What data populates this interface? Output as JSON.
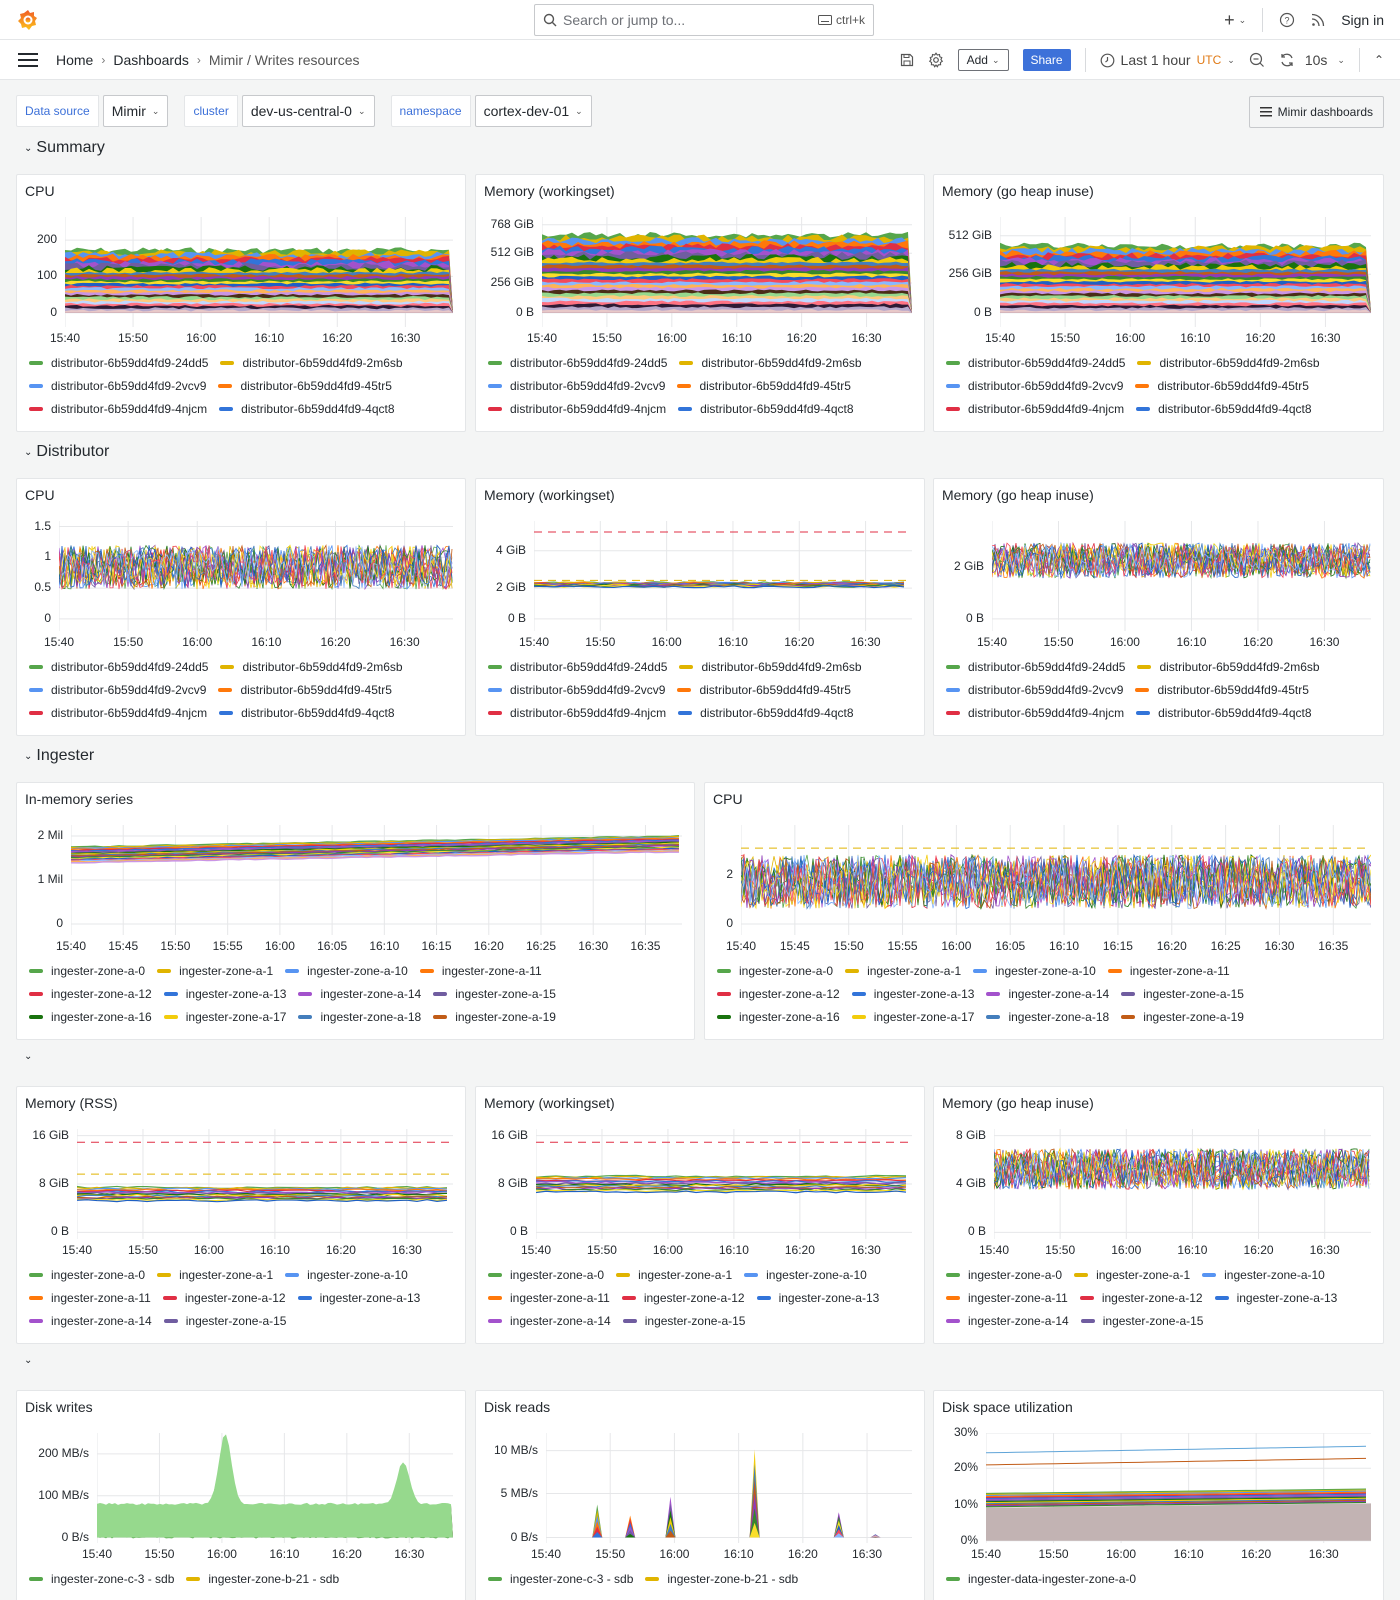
{
  "topbar": {
    "search_placeholder": "Search or jump to...",
    "search_shortcut": "ctrl+k",
    "plus_label": "+",
    "sign_in": "Sign in"
  },
  "navbar": {
    "breadcrumbs": [
      "Home",
      "Dashboards",
      "Mimir / Writes resources"
    ],
    "add_label": "Add",
    "share_label": "Share",
    "time_range": "Last 1 hour",
    "timezone": "UTC",
    "refresh_interval": "10s"
  },
  "variables": [
    {
      "label": "Data source",
      "value": "Mimir"
    },
    {
      "label": "cluster",
      "value": "dev-us-central-0"
    },
    {
      "label": "namespace",
      "value": "cortex-dev-01"
    }
  ],
  "mimir_dashboards_label": "Mimir dashboards",
  "rows": [
    {
      "title": "Summary"
    },
    {
      "title": "Distributor"
    },
    {
      "title": "Ingester"
    },
    {
      "title": ""
    },
    {
      "title": ""
    }
  ],
  "legends": {
    "distributor": [
      {
        "name": "distributor-6b59dd4fd9-24dd5",
        "color": "#56a64b"
      },
      {
        "name": "distributor-6b59dd4fd9-2m6sb",
        "color": "#e0b400"
      },
      {
        "name": "distributor-6b59dd4fd9-2vcv9",
        "color": "#5794f2"
      },
      {
        "name": "distributor-6b59dd4fd9-45tr5",
        "color": "#ff780a"
      },
      {
        "name": "distributor-6b59dd4fd9-4njcm",
        "color": "#e02f44"
      },
      {
        "name": "distributor-6b59dd4fd9-4qct8",
        "color": "#3274d9"
      }
    ],
    "ingester_12": [
      {
        "name": "ingester-zone-a-0",
        "color": "#56a64b"
      },
      {
        "name": "ingester-zone-a-1",
        "color": "#e0b400"
      },
      {
        "name": "ingester-zone-a-10",
        "color": "#5794f2"
      },
      {
        "name": "ingester-zone-a-11",
        "color": "#ff780a"
      },
      {
        "name": "ingester-zone-a-12",
        "color": "#e02f44"
      },
      {
        "name": "ingester-zone-a-13",
        "color": "#3274d9"
      },
      {
        "name": "ingester-zone-a-14",
        "color": "#a352cc"
      },
      {
        "name": "ingester-zone-a-15",
        "color": "#705da0"
      },
      {
        "name": "ingester-zone-a-16",
        "color": "#19730e"
      },
      {
        "name": "ingester-zone-a-17",
        "color": "#f2cc0c"
      },
      {
        "name": "ingester-zone-a-18",
        "color": "#447ebc"
      },
      {
        "name": "ingester-zone-a-19",
        "color": "#c15c17"
      }
    ],
    "disk": [
      {
        "name": "ingester-zone-c-3 - sdb",
        "color": "#56a64b"
      },
      {
        "name": "ingester-zone-b-21 - sdb",
        "color": "#e0b400"
      }
    ],
    "disk_space": [
      {
        "name": "ingester-data-ingester-zone-a-0",
        "color": "#56a64b"
      }
    ]
  },
  "panels": {
    "summary_cpu": {
      "title": "CPU",
      "yticks": [
        "200",
        "100",
        "0"
      ],
      "xticks": [
        "15:40",
        "15:50",
        "16:00",
        "16:10",
        "16:20",
        "16:30"
      ]
    },
    "summary_mem_ws": {
      "title": "Memory (workingset)",
      "yticks": [
        "768 GiB",
        "512 GiB",
        "256 GiB",
        "0 B"
      ],
      "xticks": [
        "15:40",
        "15:50",
        "16:00",
        "16:10",
        "16:20",
        "16:30"
      ]
    },
    "summary_mem_heap": {
      "title": "Memory (go heap inuse)",
      "yticks": [
        "512 GiB",
        "256 GiB",
        "0 B"
      ],
      "xticks": [
        "15:40",
        "15:50",
        "16:00",
        "16:10",
        "16:20",
        "16:30"
      ]
    },
    "dist_cpu": {
      "title": "CPU",
      "yticks": [
        "1.5",
        "1",
        "0.5",
        "0"
      ],
      "xticks": [
        "15:40",
        "15:50",
        "16:00",
        "16:10",
        "16:20",
        "16:30"
      ]
    },
    "dist_mem_ws": {
      "title": "Memory (workingset)",
      "yticks": [
        "4 GiB",
        "2 GiB",
        "0 B"
      ],
      "xticks": [
        "15:40",
        "15:50",
        "16:00",
        "16:10",
        "16:20",
        "16:30"
      ]
    },
    "dist_mem_heap": {
      "title": "Memory (go heap inuse)",
      "yticks": [
        "2 GiB",
        "0 B"
      ],
      "xticks": [
        "15:40",
        "15:50",
        "16:00",
        "16:10",
        "16:20",
        "16:30"
      ]
    },
    "ing_series": {
      "title": "In-memory series",
      "yticks": [
        "2 Mil",
        "1 Mil",
        "0"
      ],
      "xticks": [
        "15:40",
        "15:45",
        "15:50",
        "15:55",
        "16:00",
        "16:05",
        "16:10",
        "16:15",
        "16:20",
        "16:25",
        "16:30",
        "16:35"
      ]
    },
    "ing_cpu": {
      "title": "CPU",
      "yticks": [
        "2",
        "0"
      ],
      "xticks": [
        "15:40",
        "15:45",
        "15:50",
        "15:55",
        "16:00",
        "16:05",
        "16:10",
        "16:15",
        "16:20",
        "16:25",
        "16:30",
        "16:35"
      ]
    },
    "ing_rss": {
      "title": "Memory (RSS)",
      "yticks": [
        "16 GiB",
        "8 GiB",
        "0 B"
      ],
      "xticks": [
        "15:40",
        "15:50",
        "16:00",
        "16:10",
        "16:20",
        "16:30"
      ]
    },
    "ing_mem_ws": {
      "title": "Memory (workingset)",
      "yticks": [
        "16 GiB",
        "8 GiB",
        "0 B"
      ],
      "xticks": [
        "15:40",
        "15:50",
        "16:00",
        "16:10",
        "16:20",
        "16:30"
      ]
    },
    "ing_mem_heap": {
      "title": "Memory (go heap inuse)",
      "yticks": [
        "8 GiB",
        "4 GiB",
        "0 B"
      ],
      "xticks": [
        "15:40",
        "15:50",
        "16:00",
        "16:10",
        "16:20",
        "16:30"
      ]
    },
    "disk_writes": {
      "title": "Disk writes",
      "yticks": [
        "200 MB/s",
        "100 MB/s",
        "0 B/s"
      ],
      "xticks": [
        "15:40",
        "15:50",
        "16:00",
        "16:10",
        "16:20",
        "16:30"
      ]
    },
    "disk_reads": {
      "title": "Disk reads",
      "yticks": [
        "10 MB/s",
        "5 MB/s",
        "0 B/s"
      ],
      "xticks": [
        "15:40",
        "15:50",
        "16:00",
        "16:10",
        "16:20",
        "16:30"
      ]
    },
    "disk_space": {
      "title": "Disk space utilization",
      "yticks": [
        "30%",
        "20%",
        "10%",
        "0%"
      ],
      "xticks": [
        "15:40",
        "15:50",
        "16:00",
        "16:10",
        "16:20",
        "16:30"
      ]
    }
  }
}
